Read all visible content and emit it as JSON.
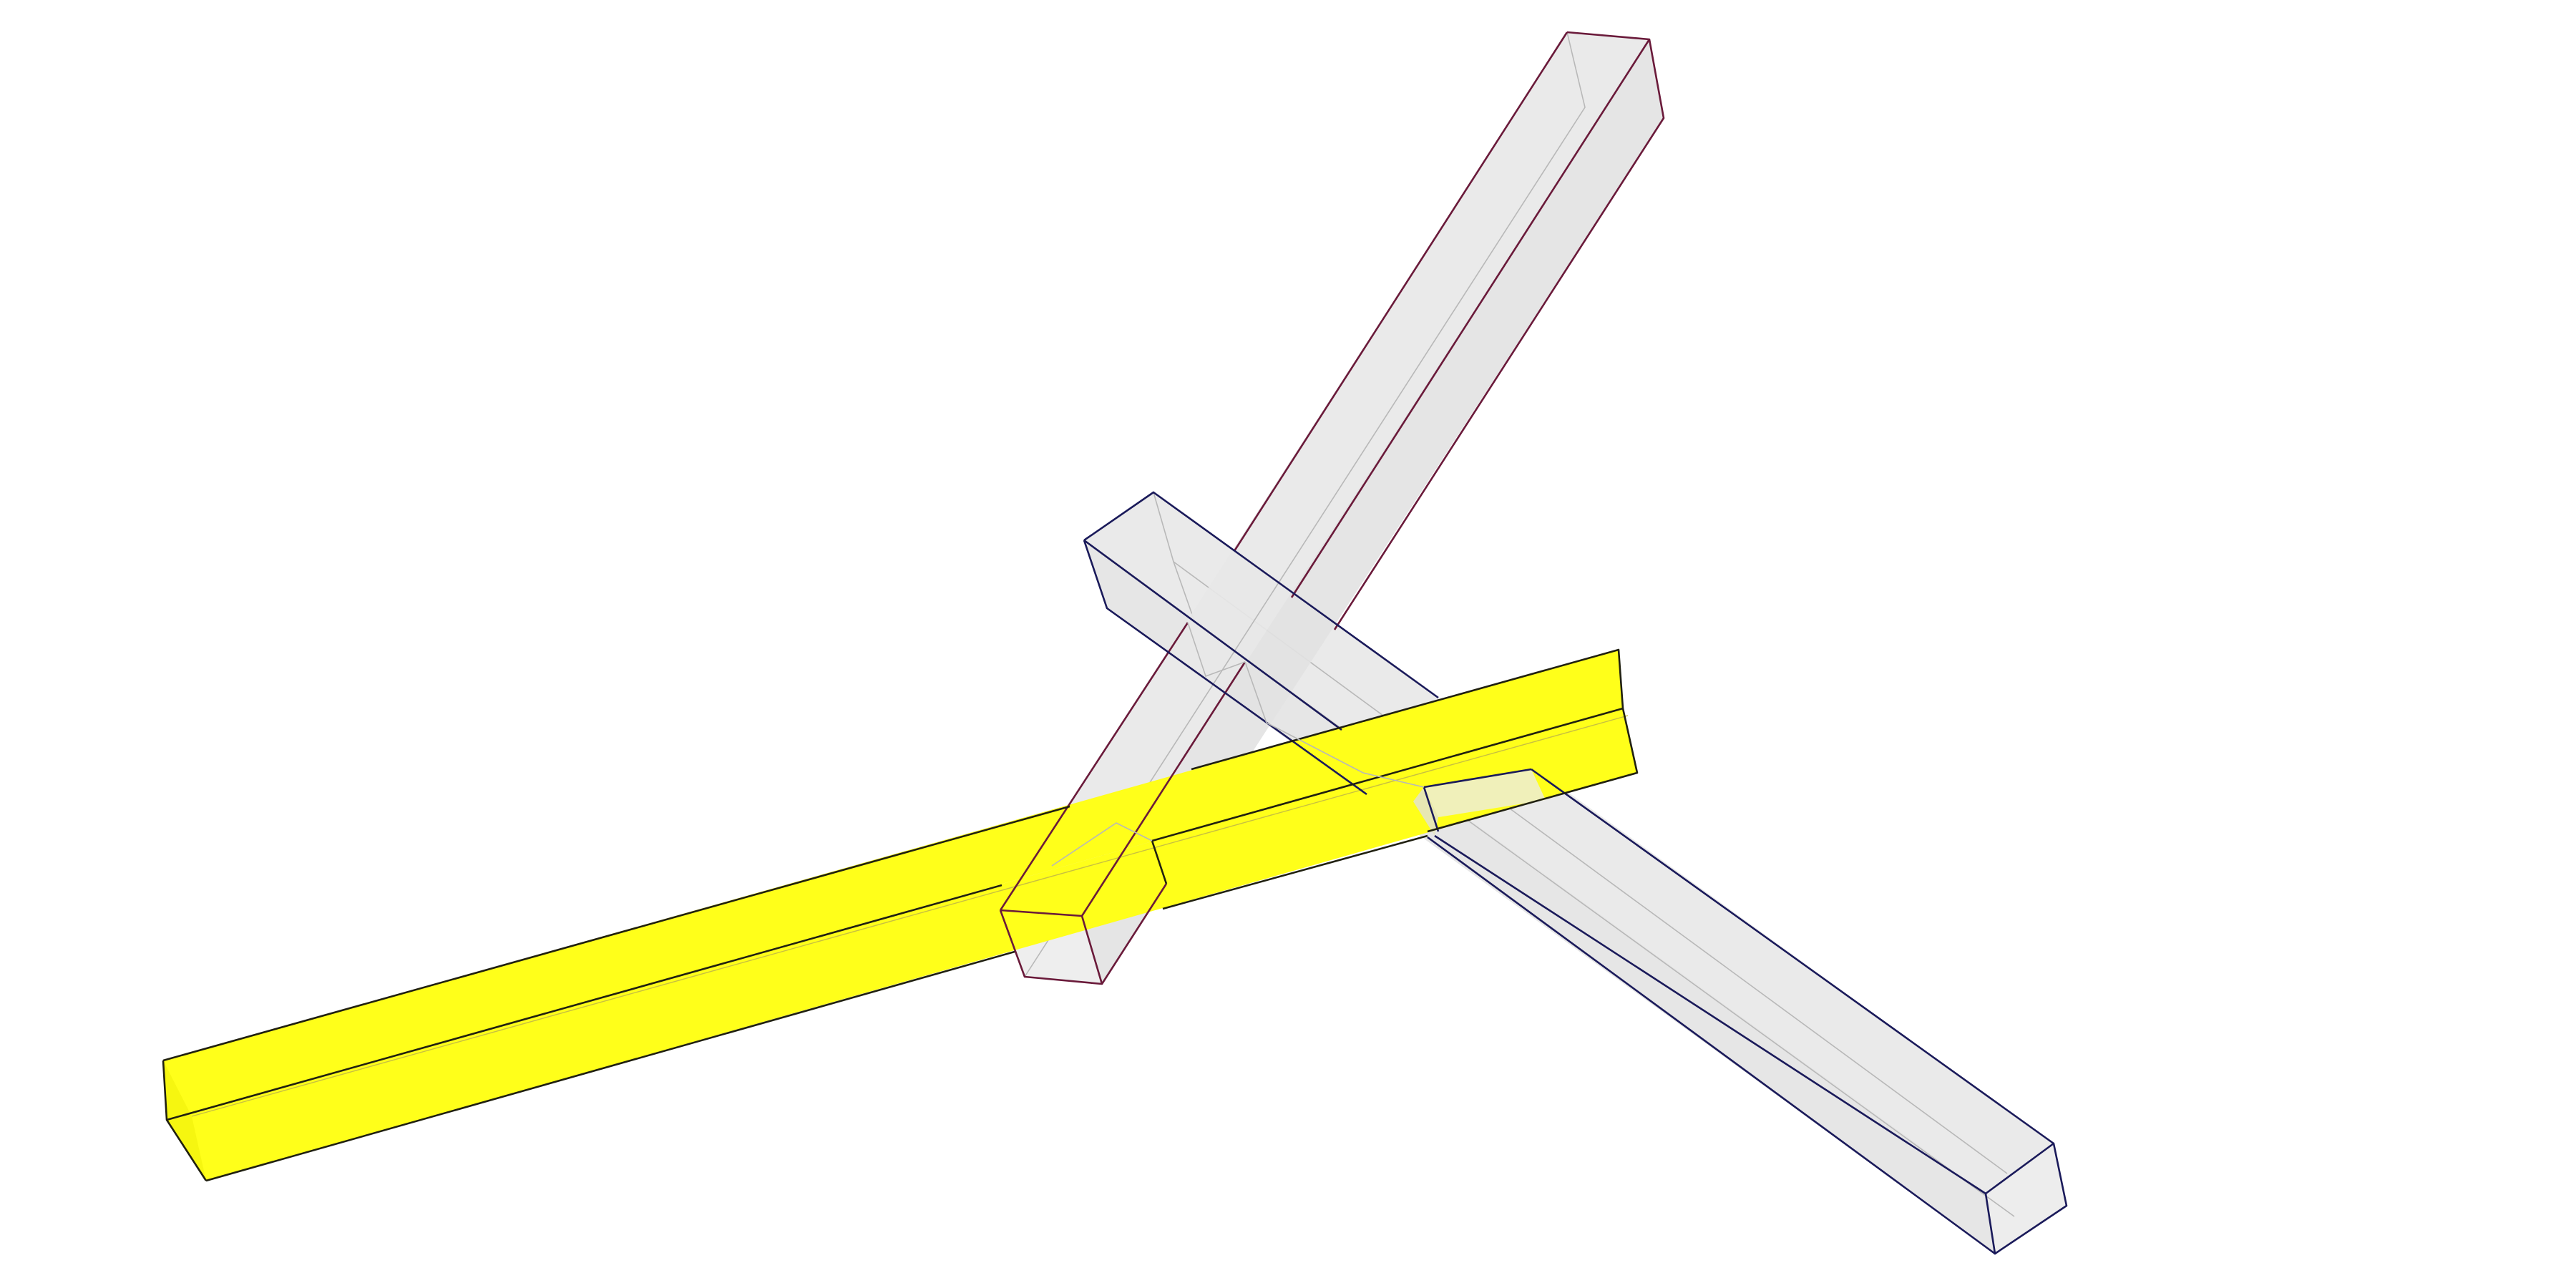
{
  "colors": {
    "background": "#ffffff",
    "highlight_beam": "#ffff1a",
    "beam_gray": "#e6e6e6",
    "edge_red": "#6a1a3a",
    "edge_blue": "#1a1a5a"
  },
  "parts": [
    {
      "name": "highlighted-beam",
      "fill": "yellow"
    },
    {
      "name": "diagonal-upright-beam",
      "fill": "gray"
    },
    {
      "name": "crossing-beam",
      "fill": "gray"
    }
  ]
}
